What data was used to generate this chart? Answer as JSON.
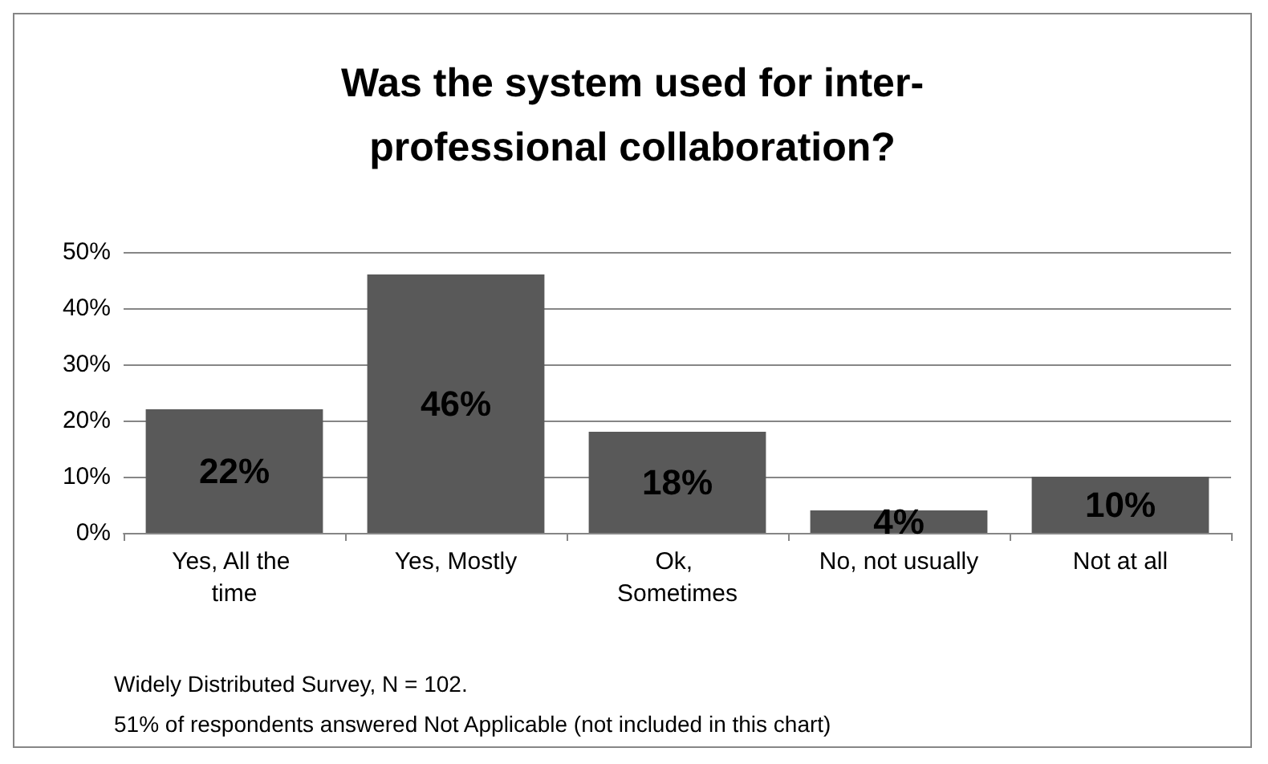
{
  "chart_data": {
    "type": "bar",
    "title": "Was the system used for inter-\nprofessional collaboration?",
    "categories": [
      "Yes, All the time",
      "Yes, Mostly",
      "Ok, Sometimes",
      "No, not usually",
      "Not at all"
    ],
    "values": [
      22,
      46,
      18,
      4,
      10
    ],
    "value_labels": [
      "22%",
      "46%",
      "18%",
      "4%",
      "10%"
    ],
    "color": "#595959",
    "ylim": [
      0,
      50
    ],
    "yticks": [
      {
        "value": 0,
        "label": "0%"
      },
      {
        "value": 10,
        "label": "10%"
      },
      {
        "value": 20,
        "label": "20%"
      },
      {
        "value": 30,
        "label": "30%"
      },
      {
        "value": 40,
        "label": "40%"
      },
      {
        "value": 50,
        "label": "50%"
      }
    ],
    "grid": "y",
    "annotations": [
      "Widely Distributed Survey, N = 102.",
      "51% of respondents answered Not Applicable (not included in this chart)"
    ]
  }
}
